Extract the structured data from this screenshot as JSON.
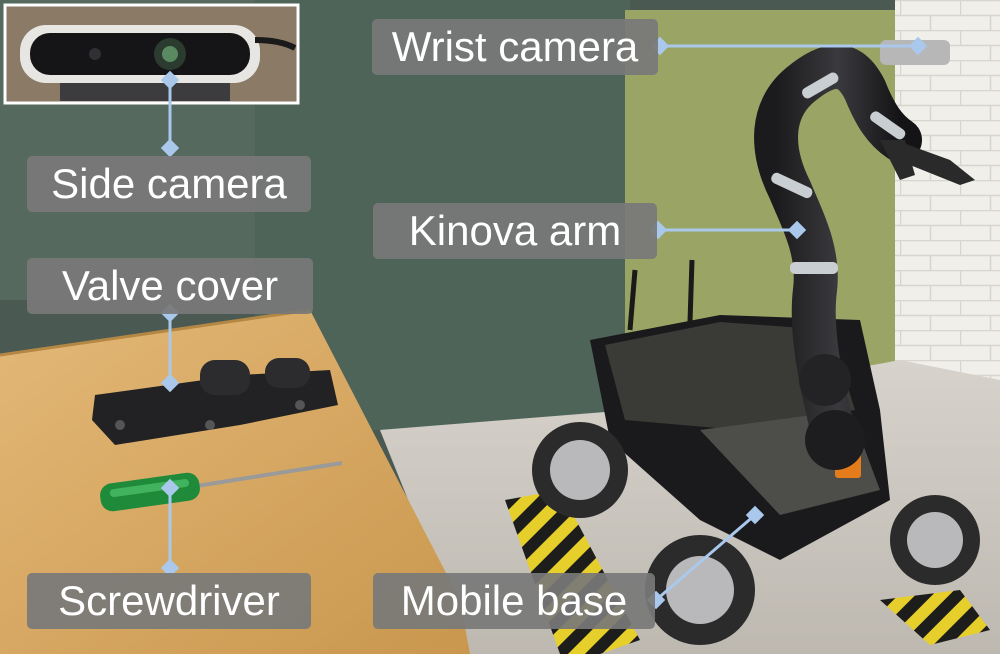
{
  "labels": {
    "wrist_camera": "Wrist camera",
    "side_camera": "Side camera",
    "kinova_arm": "Kinova arm",
    "valve_cover": "Valve cover",
    "screwdriver": "Screwdriver",
    "mobile_base": "Mobile base"
  },
  "colors": {
    "leader": "#a9c8ec",
    "label_bg": "#7a7a7a",
    "label_text": "#ffffff"
  }
}
